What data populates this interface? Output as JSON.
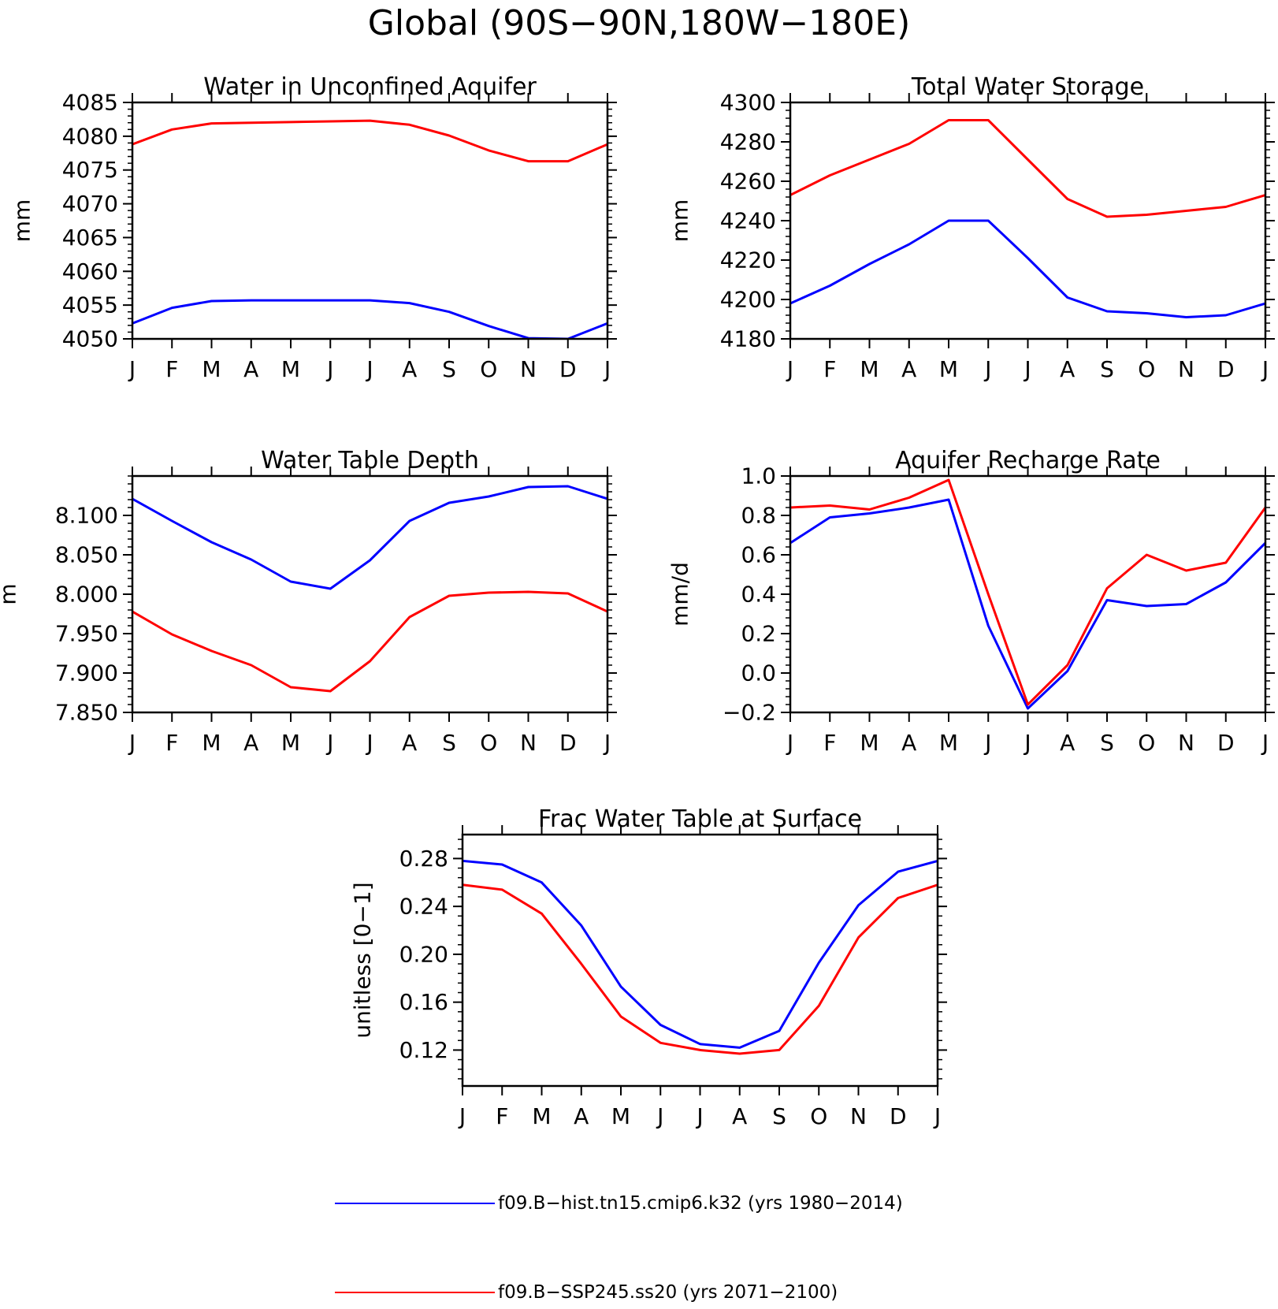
{
  "title": "Global (90S−90N,180W−180E)",
  "colors": {
    "hist": "#0000ff",
    "ssp": "#ff0000"
  },
  "legend": {
    "entries": [
      {
        "key": "hist",
        "label": "f09.B−hist.tn15.cmip6.k32 (yrs 1980−2014)",
        "color": "#0000ff"
      },
      {
        "key": "ssp",
        "label": "f09.B−SSP245.ss20 (yrs 2071−2100)",
        "color": "#ff0000"
      }
    ]
  },
  "chart_data": [
    {
      "type": "line",
      "title": "Water in Unconfined Aquifer",
      "ylabel": "mm",
      "xlabel": "",
      "categories": [
        "J",
        "F",
        "M",
        "A",
        "M",
        "J",
        "J",
        "A",
        "S",
        "O",
        "N",
        "D",
        "J"
      ],
      "ylim": [
        4050,
        4085
      ],
      "yticks": [
        "4050",
        "4055",
        "4060",
        "4065",
        "4070",
        "4075",
        "4080",
        "4085"
      ],
      "series": [
        {
          "key": "hist",
          "values": [
            4052.3,
            4054.6,
            4055.6,
            4055.7,
            4055.7,
            4055.7,
            4055.7,
            4055.3,
            4054.0,
            4051.9,
            4050.1,
            4050.0,
            4052.3
          ]
        },
        {
          "key": "ssp",
          "values": [
            4078.8,
            4081.0,
            4081.9,
            4082.0,
            4082.1,
            4082.2,
            4082.3,
            4081.7,
            4080.1,
            4077.9,
            4076.3,
            4076.3,
            4078.8
          ]
        }
      ]
    },
    {
      "type": "line",
      "title": "Total Water Storage",
      "ylabel": "mm",
      "xlabel": "",
      "categories": [
        "J",
        "F",
        "M",
        "A",
        "M",
        "J",
        "J",
        "A",
        "S",
        "O",
        "N",
        "D",
        "J"
      ],
      "ylim": [
        4180,
        4300
      ],
      "yticks": [
        "4180",
        "4200",
        "4220",
        "4240",
        "4260",
        "4280",
        "4300"
      ],
      "series": [
        {
          "key": "hist",
          "values": [
            4198,
            4207,
            4218,
            4228,
            4240,
            4240,
            4221,
            4201,
            4194,
            4193,
            4191,
            4192,
            4198
          ]
        },
        {
          "key": "ssp",
          "values": [
            4253,
            4263,
            4271,
            4279,
            4291,
            4291,
            4271,
            4251,
            4242,
            4243,
            4245,
            4247,
            4253
          ]
        }
      ]
    },
    {
      "type": "line",
      "title": "Water Table Depth",
      "ylabel": "m",
      "xlabel": "",
      "categories": [
        "J",
        "F",
        "M",
        "A",
        "M",
        "J",
        "J",
        "A",
        "S",
        "O",
        "N",
        "D",
        "J"
      ],
      "ylim": [
        7.85,
        8.15
      ],
      "yticks": [
        "7.850",
        "7.900",
        "7.950",
        "8.000",
        "8.050",
        "8.100"
      ],
      "series": [
        {
          "key": "hist",
          "values": [
            8.121,
            8.093,
            8.066,
            8.044,
            8.016,
            8.007,
            8.043,
            8.093,
            8.116,
            8.124,
            8.136,
            8.137,
            8.121
          ]
        },
        {
          "key": "ssp",
          "values": [
            7.978,
            7.949,
            7.928,
            7.91,
            7.882,
            7.877,
            7.915,
            7.971,
            7.998,
            8.002,
            8.003,
            8.001,
            7.978
          ]
        }
      ]
    },
    {
      "type": "line",
      "title": "Aquifer Recharge Rate",
      "ylabel": "mm/d",
      "xlabel": "",
      "categories": [
        "J",
        "F",
        "M",
        "A",
        "M",
        "J",
        "J",
        "A",
        "S",
        "O",
        "N",
        "D",
        "J"
      ],
      "ylim": [
        -0.2,
        1.0
      ],
      "yticks": [
        "−0.2",
        "0.0",
        "0.2",
        "0.4",
        "0.6",
        "0.8",
        "1.0"
      ],
      "series": [
        {
          "key": "hist",
          "values": [
            0.66,
            0.79,
            0.81,
            0.84,
            0.88,
            0.24,
            -0.18,
            0.01,
            0.37,
            0.34,
            0.35,
            0.46,
            0.66
          ]
        },
        {
          "key": "ssp",
          "values": [
            0.84,
            0.85,
            0.83,
            0.89,
            0.98,
            0.4,
            -0.16,
            0.04,
            0.43,
            0.6,
            0.52,
            0.56,
            0.84
          ]
        }
      ]
    },
    {
      "type": "line",
      "title": "Frac Water Table at Surface",
      "ylabel": "unitless [0−1]",
      "xlabel": "",
      "categories": [
        "J",
        "F",
        "M",
        "A",
        "M",
        "J",
        "J",
        "A",
        "S",
        "O",
        "N",
        "D",
        "J"
      ],
      "ylim": [
        0.09,
        0.3
      ],
      "yticks": [
        "0.12",
        "0.16",
        "0.20",
        "0.24",
        "0.28"
      ],
      "series": [
        {
          "key": "hist",
          "values": [
            0.278,
            0.275,
            0.26,
            0.224,
            0.173,
            0.141,
            0.125,
            0.122,
            0.136,
            0.193,
            0.241,
            0.269,
            0.278
          ]
        },
        {
          "key": "ssp",
          "values": [
            0.258,
            0.254,
            0.234,
            0.192,
            0.148,
            0.126,
            0.12,
            0.117,
            0.12,
            0.157,
            0.214,
            0.247,
            0.258
          ]
        }
      ]
    }
  ]
}
